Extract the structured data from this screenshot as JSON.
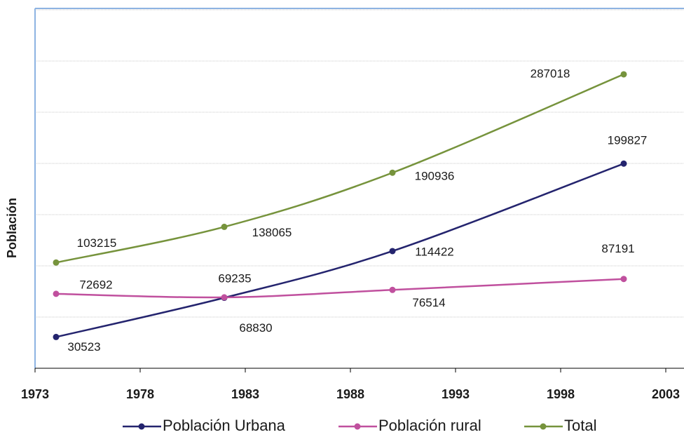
{
  "chart_data": {
    "type": "line",
    "y_label": "Población",
    "x": [
      1974,
      1982,
      1990,
      2001
    ],
    "xlim": [
      1973,
      2003
    ],
    "xticks": [
      1973,
      1978,
      1983,
      1988,
      1993,
      1998,
      2003
    ],
    "ylim": [
      0,
      350000
    ],
    "yticks": [
      0,
      50000,
      100000,
      150000,
      200000,
      250000,
      300000,
      350000
    ],
    "grid": true,
    "smooth": true,
    "legend": "bottom",
    "series": [
      {
        "name": "Población Urbana",
        "color": "#24246e",
        "values": [
          30523,
          68830,
          114422,
          199827
        ]
      },
      {
        "name": "Población rural",
        "color": "#c0509e",
        "values": [
          72692,
          69235,
          76514,
          87191
        ]
      },
      {
        "name": "Total",
        "color": "#76933c",
        "values": [
          103215,
          138065,
          190936,
          287018
        ]
      }
    ]
  }
}
